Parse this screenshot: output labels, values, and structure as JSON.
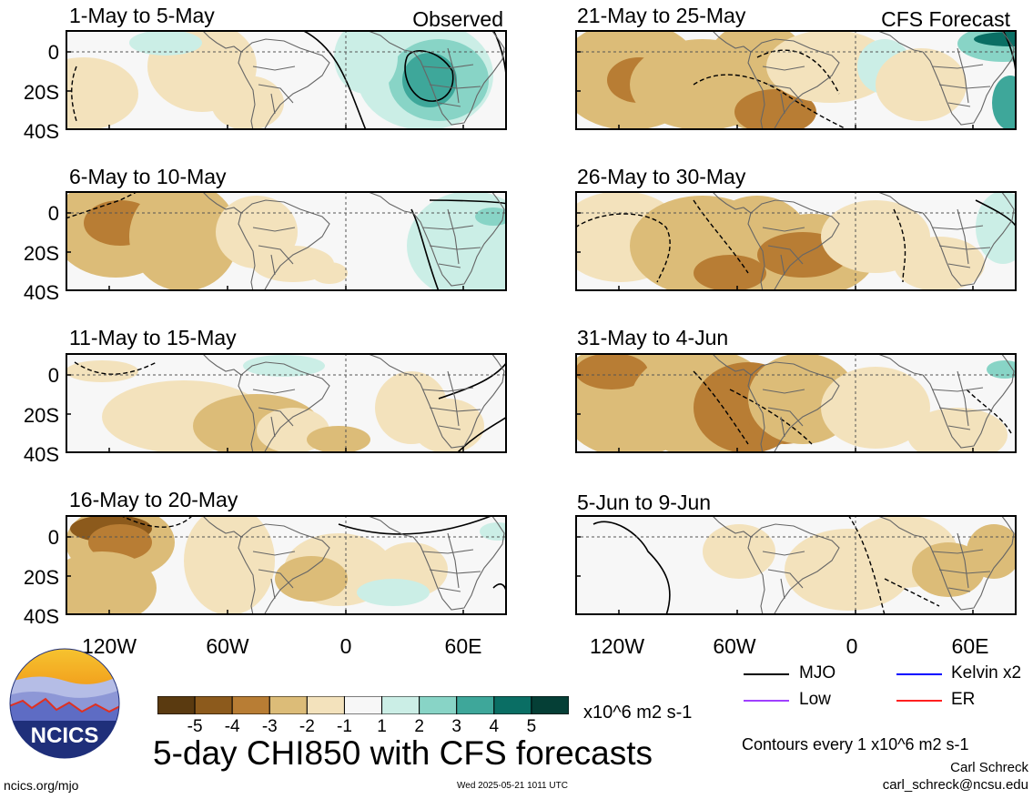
{
  "header": {
    "observed_label": "Observed",
    "forecast_label": "CFS Forecast"
  },
  "panels": {
    "left": [
      {
        "title": "1-May to 5-May"
      },
      {
        "title": "6-May to 10-May"
      },
      {
        "title": "11-May to 15-May"
      },
      {
        "title": "16-May to 20-May"
      }
    ],
    "right": [
      {
        "title": "21-May to 25-May"
      },
      {
        "title": "26-May to 30-May"
      },
      {
        "title": "31-May to 4-Jun"
      },
      {
        "title": "5-Jun to 9-Jun"
      }
    ]
  },
  "axes": {
    "y_ticks": [
      "0",
      "20S",
      "40S"
    ],
    "x_ticks": [
      "120W",
      "60W",
      "0",
      "60E"
    ]
  },
  "legend": {
    "items": [
      {
        "label": "MJO",
        "color": "#000000"
      },
      {
        "label": "Kelvin x2",
        "color": "#0000ff"
      },
      {
        "label": "Low",
        "color": "#a040ff"
      },
      {
        "label": "ER",
        "color": "#ff2020"
      }
    ],
    "contour_note": "Contours every 1 x10^6 m2 s-1"
  },
  "colorbar": {
    "colors": [
      "#5a3a10",
      "#8c5a1c",
      "#b87d34",
      "#dcbc78",
      "#f3e2bc",
      "#f7f7f7",
      "#cbeee6",
      "#88d4c6",
      "#3ea79a",
      "#0a6e64",
      "#053f36"
    ],
    "ticks": [
      "-5",
      "-4",
      "-3",
      "-2",
      "-1",
      "1",
      "2",
      "3",
      "4",
      "5"
    ],
    "units": "x10^6 m2 s-1"
  },
  "footer": {
    "title": "5-day CHI850 with CFS forecasts",
    "url": "ncics.org/mjo",
    "timestamp": "Wed 2025-05-21 1011 UTC",
    "author": "Carl Schreck",
    "email": "carl_schreck@ncsu.edu",
    "logo_text": "NCICS"
  }
}
